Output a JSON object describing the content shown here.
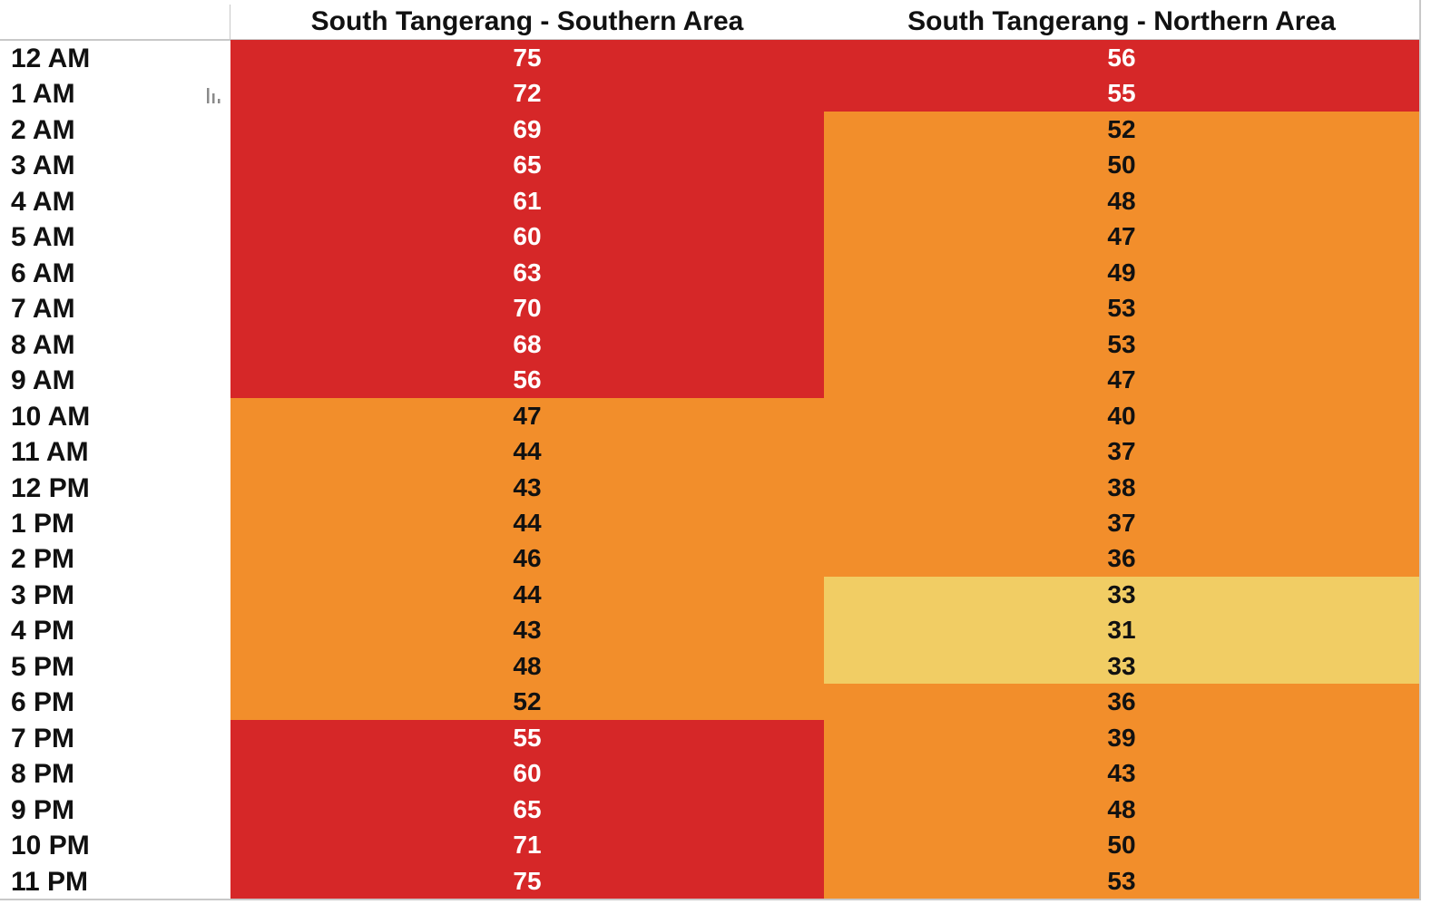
{
  "chart_data": {
    "type": "heatmap",
    "columns": [
      "South Tangerang - Southern Area",
      "South Tangerang - Northern Area"
    ],
    "rows": [
      "12 AM",
      "1 AM",
      "2 AM",
      "3 AM",
      "4 AM",
      "5 AM",
      "6 AM",
      "7 AM",
      "8 AM",
      "9 AM",
      "10 AM",
      "11 AM",
      "12 PM",
      "1 PM",
      "2 PM",
      "3 PM",
      "4 PM",
      "5 PM",
      "6 PM",
      "7 PM",
      "8 PM",
      "9 PM",
      "10 PM",
      "11 PM"
    ],
    "values": [
      [
        75,
        56
      ],
      [
        72,
        55
      ],
      [
        69,
        52
      ],
      [
        65,
        50
      ],
      [
        61,
        48
      ],
      [
        60,
        47
      ],
      [
        63,
        49
      ],
      [
        70,
        53
      ],
      [
        68,
        53
      ],
      [
        56,
        47
      ],
      [
        47,
        40
      ],
      [
        44,
        37
      ],
      [
        43,
        38
      ],
      [
        44,
        37
      ],
      [
        46,
        36
      ],
      [
        44,
        33
      ],
      [
        43,
        31
      ],
      [
        48,
        33
      ],
      [
        52,
        36
      ],
      [
        55,
        39
      ],
      [
        60,
        43
      ],
      [
        65,
        48
      ],
      [
        71,
        50
      ],
      [
        75,
        53
      ]
    ],
    "color_bins": [
      {
        "min": 54,
        "color": "#d62728",
        "text_color": "#ffffff"
      },
      {
        "min": 34,
        "color": "#f28e2b",
        "text_color": "#111111"
      },
      {
        "min": 0,
        "color": "#f1cd64",
        "text_color": "#111111"
      }
    ]
  },
  "icons": {
    "marks": "bar-chart-mini-icon"
  }
}
